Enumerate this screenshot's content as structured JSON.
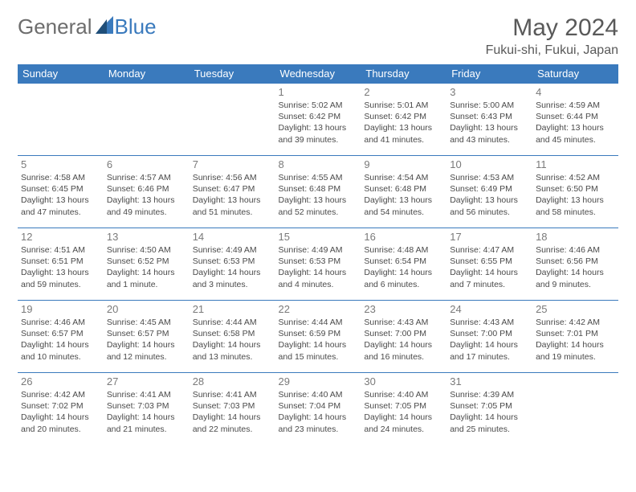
{
  "brand": {
    "general": "General",
    "blue": "Blue"
  },
  "title": "May 2024",
  "location": "Fukui-shi, Fukui, Japan",
  "colors": {
    "accent": "#3a7abd",
    "text": "#4a4a4a",
    "muted": "#7a7a7a",
    "bg": "#ffffff"
  },
  "weekdays": [
    "Sunday",
    "Monday",
    "Tuesday",
    "Wednesday",
    "Thursday",
    "Friday",
    "Saturday"
  ],
  "calendar": {
    "type": "table",
    "first_weekday_index": 3,
    "days": [
      {
        "n": 1,
        "sr": "5:02 AM",
        "ss": "6:42 PM",
        "dl": "13 hours and 39 minutes."
      },
      {
        "n": 2,
        "sr": "5:01 AM",
        "ss": "6:42 PM",
        "dl": "13 hours and 41 minutes."
      },
      {
        "n": 3,
        "sr": "5:00 AM",
        "ss": "6:43 PM",
        "dl": "13 hours and 43 minutes."
      },
      {
        "n": 4,
        "sr": "4:59 AM",
        "ss": "6:44 PM",
        "dl": "13 hours and 45 minutes."
      },
      {
        "n": 5,
        "sr": "4:58 AM",
        "ss": "6:45 PM",
        "dl": "13 hours and 47 minutes."
      },
      {
        "n": 6,
        "sr": "4:57 AM",
        "ss": "6:46 PM",
        "dl": "13 hours and 49 minutes."
      },
      {
        "n": 7,
        "sr": "4:56 AM",
        "ss": "6:47 PM",
        "dl": "13 hours and 51 minutes."
      },
      {
        "n": 8,
        "sr": "4:55 AM",
        "ss": "6:48 PM",
        "dl": "13 hours and 52 minutes."
      },
      {
        "n": 9,
        "sr": "4:54 AM",
        "ss": "6:48 PM",
        "dl": "13 hours and 54 minutes."
      },
      {
        "n": 10,
        "sr": "4:53 AM",
        "ss": "6:49 PM",
        "dl": "13 hours and 56 minutes."
      },
      {
        "n": 11,
        "sr": "4:52 AM",
        "ss": "6:50 PM",
        "dl": "13 hours and 58 minutes."
      },
      {
        "n": 12,
        "sr": "4:51 AM",
        "ss": "6:51 PM",
        "dl": "13 hours and 59 minutes."
      },
      {
        "n": 13,
        "sr": "4:50 AM",
        "ss": "6:52 PM",
        "dl": "14 hours and 1 minute."
      },
      {
        "n": 14,
        "sr": "4:49 AM",
        "ss": "6:53 PM",
        "dl": "14 hours and 3 minutes."
      },
      {
        "n": 15,
        "sr": "4:49 AM",
        "ss": "6:53 PM",
        "dl": "14 hours and 4 minutes."
      },
      {
        "n": 16,
        "sr": "4:48 AM",
        "ss": "6:54 PM",
        "dl": "14 hours and 6 minutes."
      },
      {
        "n": 17,
        "sr": "4:47 AM",
        "ss": "6:55 PM",
        "dl": "14 hours and 7 minutes."
      },
      {
        "n": 18,
        "sr": "4:46 AM",
        "ss": "6:56 PM",
        "dl": "14 hours and 9 minutes."
      },
      {
        "n": 19,
        "sr": "4:46 AM",
        "ss": "6:57 PM",
        "dl": "14 hours and 10 minutes."
      },
      {
        "n": 20,
        "sr": "4:45 AM",
        "ss": "6:57 PM",
        "dl": "14 hours and 12 minutes."
      },
      {
        "n": 21,
        "sr": "4:44 AM",
        "ss": "6:58 PM",
        "dl": "14 hours and 13 minutes."
      },
      {
        "n": 22,
        "sr": "4:44 AM",
        "ss": "6:59 PM",
        "dl": "14 hours and 15 minutes."
      },
      {
        "n": 23,
        "sr": "4:43 AM",
        "ss": "7:00 PM",
        "dl": "14 hours and 16 minutes."
      },
      {
        "n": 24,
        "sr": "4:43 AM",
        "ss": "7:00 PM",
        "dl": "14 hours and 17 minutes."
      },
      {
        "n": 25,
        "sr": "4:42 AM",
        "ss": "7:01 PM",
        "dl": "14 hours and 19 minutes."
      },
      {
        "n": 26,
        "sr": "4:42 AM",
        "ss": "7:02 PM",
        "dl": "14 hours and 20 minutes."
      },
      {
        "n": 27,
        "sr": "4:41 AM",
        "ss": "7:03 PM",
        "dl": "14 hours and 21 minutes."
      },
      {
        "n": 28,
        "sr": "4:41 AM",
        "ss": "7:03 PM",
        "dl": "14 hours and 22 minutes."
      },
      {
        "n": 29,
        "sr": "4:40 AM",
        "ss": "7:04 PM",
        "dl": "14 hours and 23 minutes."
      },
      {
        "n": 30,
        "sr": "4:40 AM",
        "ss": "7:05 PM",
        "dl": "14 hours and 24 minutes."
      },
      {
        "n": 31,
        "sr": "4:39 AM",
        "ss": "7:05 PM",
        "dl": "14 hours and 25 minutes."
      }
    ]
  },
  "labels": {
    "sunrise": "Sunrise:",
    "sunset": "Sunset:",
    "daylight": "Daylight:"
  },
  "style": {
    "header_bg": "#3a7abd",
    "header_fg": "#ffffff",
    "cell_border": "#3a7abd",
    "body_fontsize": 10.5,
    "daynum_fontsize": 13,
    "weekday_fontsize": 13,
    "title_fontsize": 30,
    "location_fontsize": 16
  }
}
